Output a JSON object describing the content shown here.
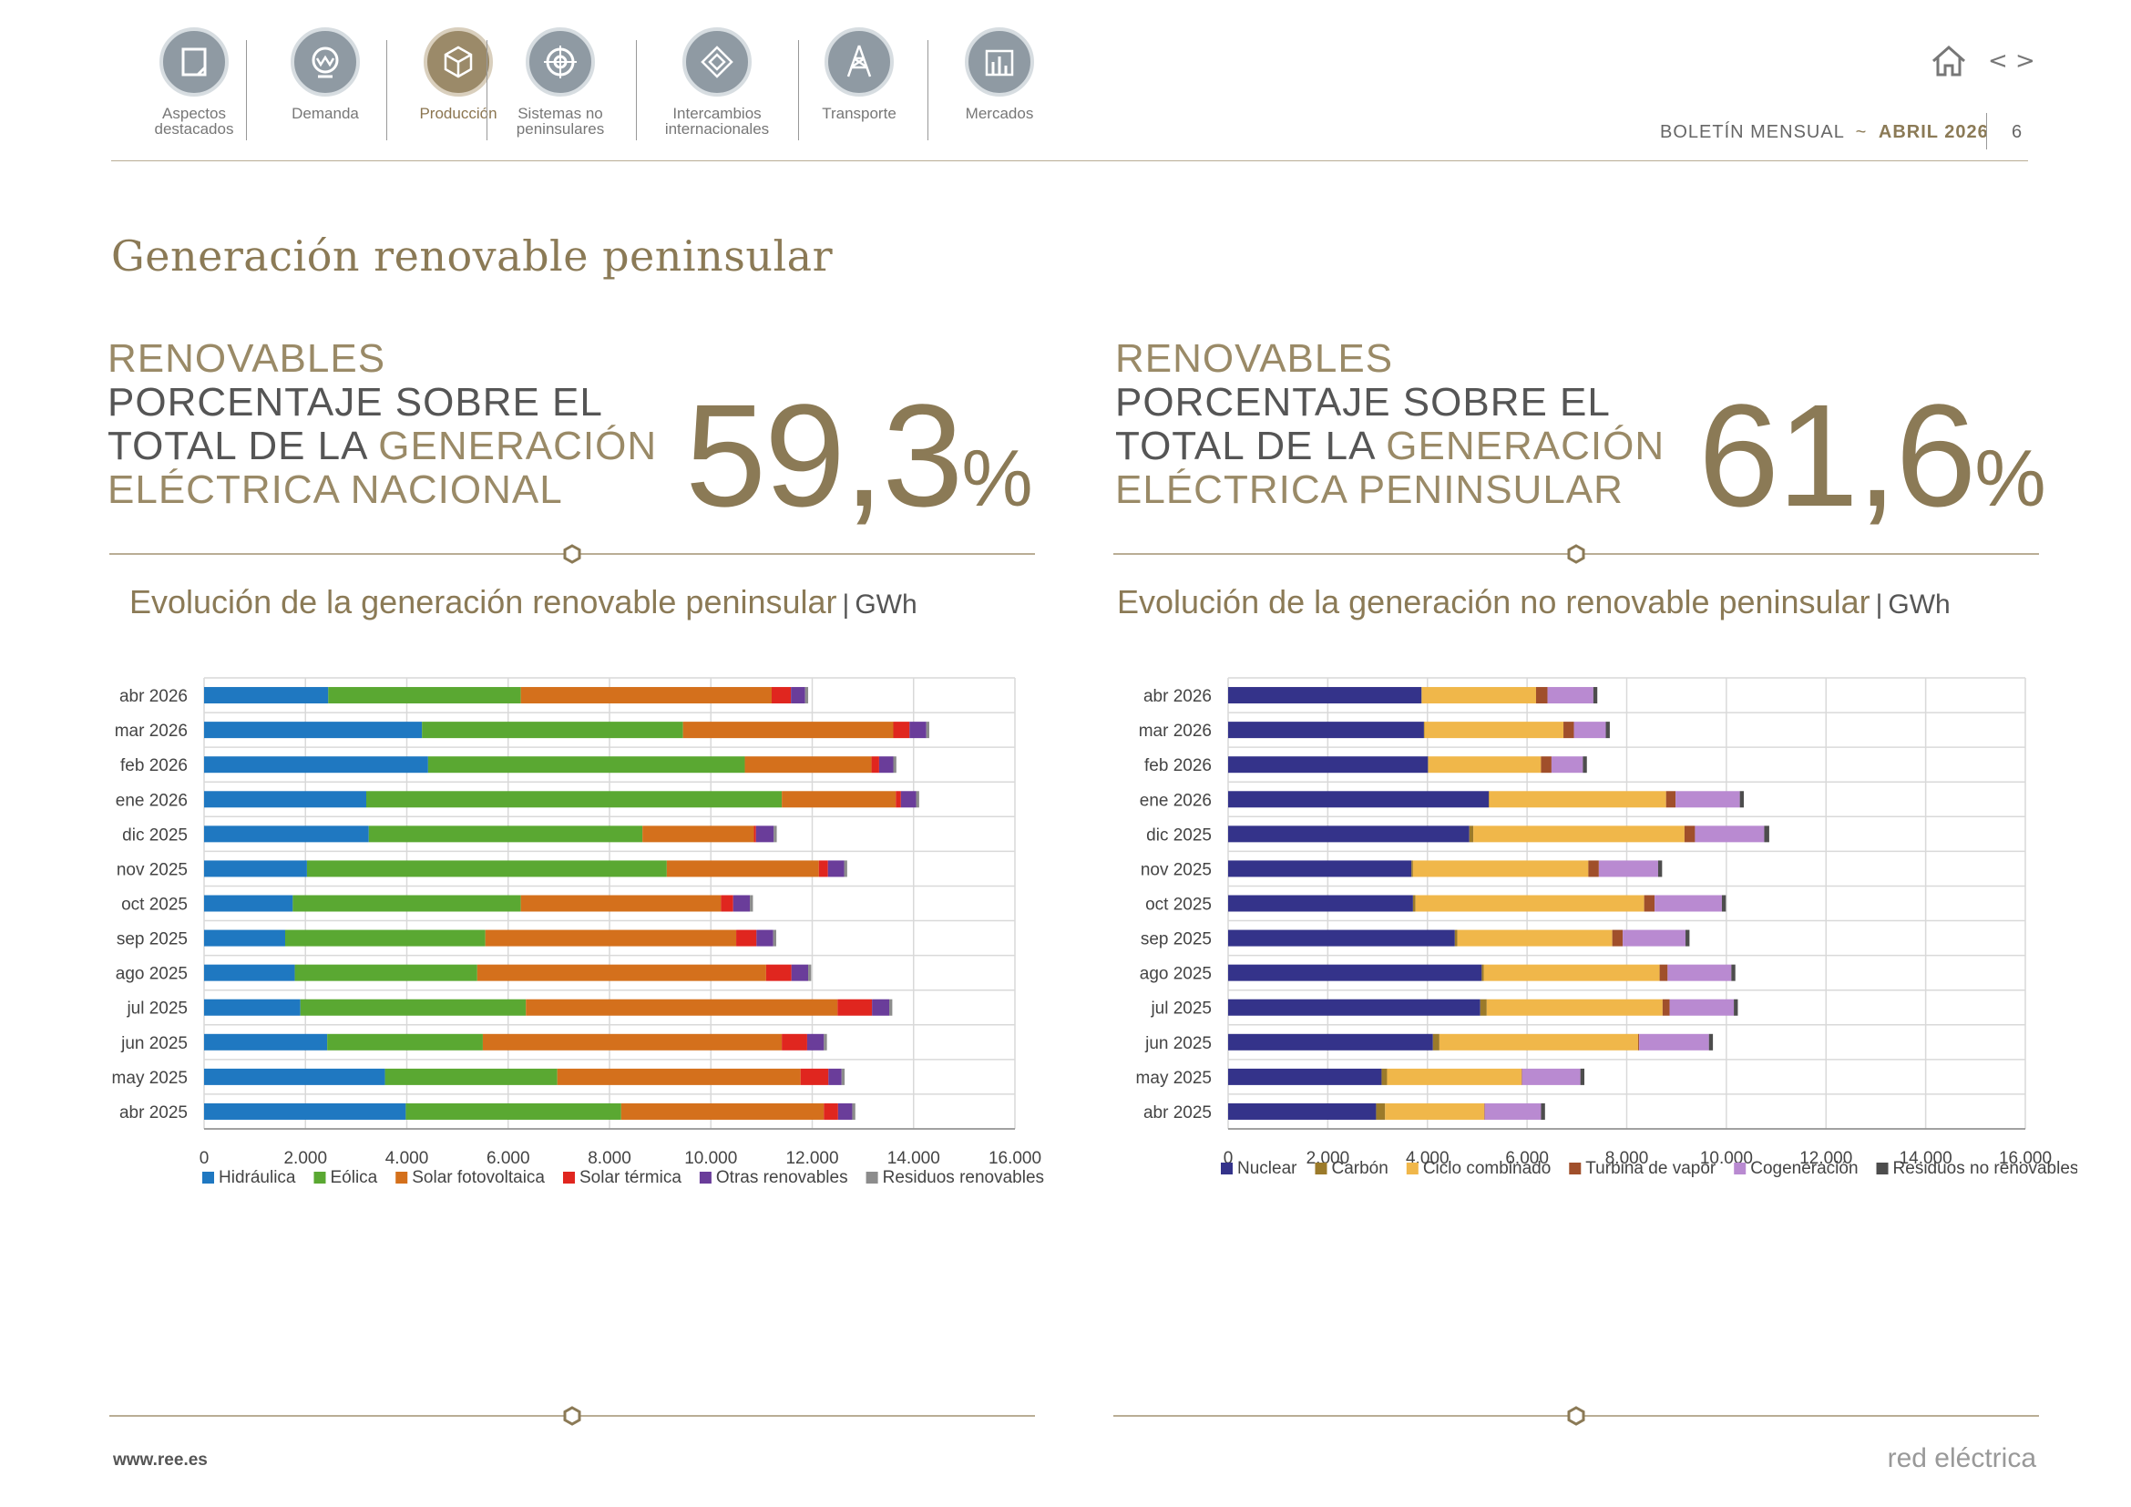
{
  "nav": {
    "items": [
      {
        "label1": "Aspectos",
        "label2": "destacados",
        "icon": "document-icon",
        "active": false
      },
      {
        "label1": "Demanda",
        "label2": "",
        "icon": "demand-icon",
        "active": false
      },
      {
        "label1": "Producción",
        "label2": "",
        "icon": "cube-icon",
        "active": true
      },
      {
        "label1": "Sistemas no",
        "label2": "peninsulares",
        "icon": "target-icon",
        "active": false
      },
      {
        "label1": "Intercambios",
        "label2": "internacionales",
        "icon": "exchange-icon",
        "active": false
      },
      {
        "label1": "Transporte",
        "label2": "",
        "icon": "pylon-icon",
        "active": false
      },
      {
        "label1": "Mercados",
        "label2": "",
        "icon": "bars-icon",
        "active": false
      }
    ]
  },
  "header": {
    "bulletin": "BOLETÍN MENSUAL",
    "sep": "~",
    "month": "ABRIL 2026",
    "page": "6",
    "prev": "<",
    "next": ">"
  },
  "page_title": "Generación renovable peninsular",
  "kpi_left": {
    "l1": "RENOVABLES",
    "l2": "PORCENTAJE SOBRE EL",
    "l3a": "TOTAL DE LA ",
    "l3b": "GENERACIÓN",
    "l4": "ELÉCTRICA NACIONAL",
    "value": "59,3",
    "unit": "%"
  },
  "kpi_right": {
    "l1": "RENOVABLES",
    "l2": "PORCENTAJE SOBRE EL",
    "l3a": "TOTAL DE LA ",
    "l3b": "GENERACIÓN",
    "l4": "ELÉCTRICA PENINSULAR",
    "value": "61,6",
    "unit": "%"
  },
  "footer": {
    "url": "www.ree.es",
    "brand": "red eléctrica"
  },
  "chart_data": [
    {
      "type": "bar",
      "orientation": "horizontal",
      "stacked": true,
      "title": "Evolución de la generación renovable peninsular",
      "unit": "GWh",
      "categories": [
        "abr 2026",
        "mar 2026",
        "feb 2026",
        "ene 2026",
        "dic 2025",
        "nov 2025",
        "oct 2025",
        "sep 2025",
        "ago 2025",
        "jul 2025",
        "jun 2025",
        "may 2025",
        "abr 2025"
      ],
      "xlim": [
        0,
        16000
      ],
      "xticks": [
        0,
        2000,
        4000,
        6000,
        8000,
        10000,
        12000,
        14000,
        16000
      ],
      "xtick_labels": [
        "0",
        "2.000",
        "4.000",
        "6.000",
        "8.000",
        "10.000",
        "12.000",
        "14.000",
        "16.000"
      ],
      "grid": true,
      "legend_position": "bottom",
      "series": [
        {
          "name": "Hidráulica",
          "color": "#1f78c1",
          "values": [
            2450,
            4300,
            4420,
            3200,
            3250,
            2030,
            1750,
            1600,
            1790,
            1900,
            2430,
            3570,
            3980
          ]
        },
        {
          "name": "Eólica",
          "color": "#5aa832",
          "values": [
            3800,
            5150,
            6250,
            8200,
            5400,
            7100,
            4500,
            3950,
            3600,
            4450,
            3070,
            3400,
            4250
          ]
        },
        {
          "name": "Solar fotovoltaica",
          "color": "#d4701c",
          "values": [
            4950,
            4150,
            2500,
            2250,
            2200,
            3000,
            3950,
            4950,
            5700,
            6150,
            5900,
            4800,
            4000
          ]
        },
        {
          "name": "Solar térmica",
          "color": "#e0261f",
          "values": [
            380,
            320,
            150,
            100,
            40,
            180,
            240,
            400,
            500,
            680,
            500,
            550,
            280
          ]
        },
        {
          "name": "Otras renovables",
          "color": "#6a3d9a",
          "values": [
            280,
            330,
            280,
            300,
            350,
            320,
            330,
            330,
            330,
            340,
            330,
            260,
            280
          ]
        },
        {
          "name": "Residuos renovables",
          "color": "#8c8c8c",
          "values": [
            60,
            60,
            60,
            60,
            60,
            60,
            60,
            60,
            60,
            60,
            60,
            60,
            60
          ]
        }
      ]
    },
    {
      "type": "bar",
      "orientation": "horizontal",
      "stacked": true,
      "title": "Evolución de la generación no renovable peninsular",
      "unit": "GWh",
      "categories": [
        "abr 2026",
        "mar 2026",
        "feb 2026",
        "ene 2026",
        "dic 2025",
        "nov 2025",
        "oct 2025",
        "sep 2025",
        "ago 2025",
        "jul 2025",
        "jun 2025",
        "may 2025",
        "abr 2025"
      ],
      "xlim": [
        0,
        16000
      ],
      "xticks": [
        0,
        2000,
        4000,
        6000,
        8000,
        10000,
        12000,
        14000,
        16000
      ],
      "xtick_labels": [
        "0",
        "2.000",
        "4.000",
        "6.000",
        "8.000",
        "10.000",
        "12.000",
        "14.000",
        "16.000"
      ],
      "grid": true,
      "legend_position": "bottom",
      "series": [
        {
          "name": "Nuclear",
          "color": "#34338a",
          "values": [
            3880,
            3930,
            4010,
            5230,
            4840,
            3680,
            3710,
            4550,
            5090,
            5060,
            4110,
            3080,
            2970
          ]
        },
        {
          "name": "Carbón",
          "color": "#9b7a2a",
          "values": [
            10,
            10,
            10,
            10,
            80,
            30,
            50,
            50,
            40,
            130,
            130,
            110,
            180
          ]
        },
        {
          "name": "Ciclo combinado",
          "color": "#f0b74a",
          "values": [
            2290,
            2790,
            2260,
            3550,
            4240,
            3520,
            4590,
            3110,
            3530,
            3530,
            3990,
            2700,
            1990
          ]
        },
        {
          "name": "Turbina de vapor",
          "color": "#a04f2b",
          "values": [
            230,
            210,
            210,
            190,
            210,
            210,
            210,
            210,
            160,
            140,
            20,
            10,
            10
          ]
        },
        {
          "name": "Cogeneración",
          "color": "#b98ad1",
          "values": [
            920,
            640,
            630,
            1290,
            1390,
            1190,
            1350,
            1260,
            1280,
            1290,
            1400,
            1170,
            1130
          ]
        },
        {
          "name": "Residuos no renovables",
          "color": "#4d4d4d",
          "values": [
            80,
            80,
            80,
            80,
            100,
            80,
            80,
            80,
            80,
            80,
            80,
            80,
            80
          ]
        }
      ]
    }
  ]
}
